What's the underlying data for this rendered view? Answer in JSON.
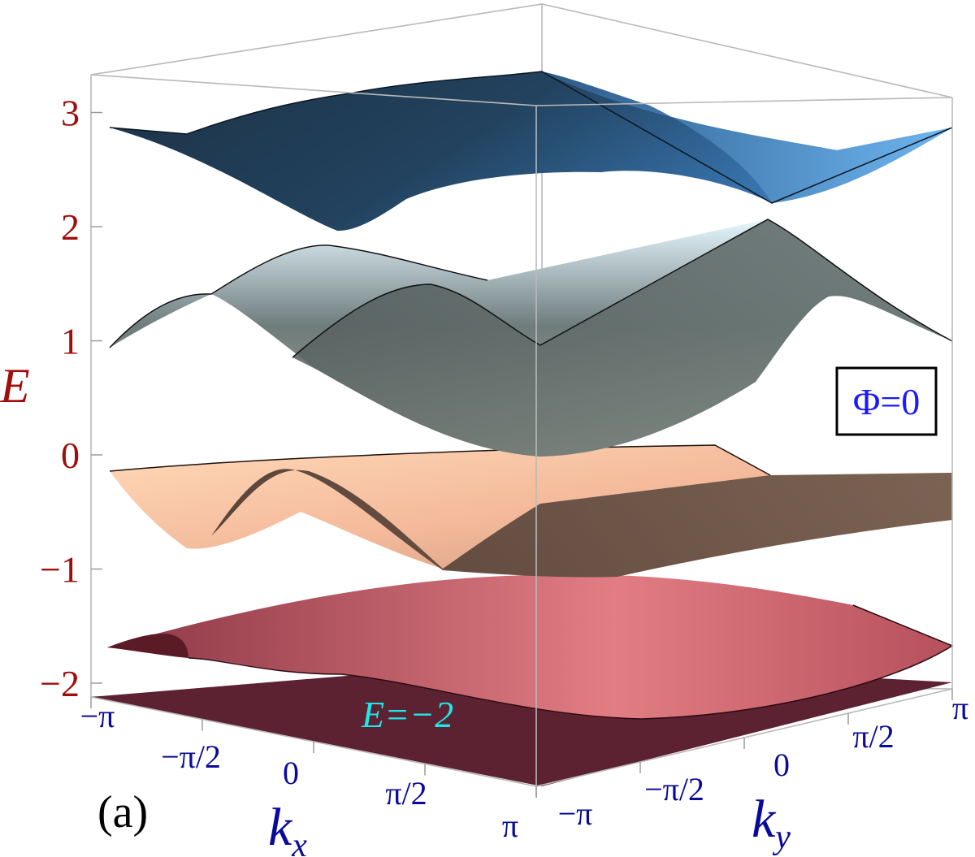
{
  "panel_label": "(a)",
  "annotation": {
    "plane_label": "E=−2",
    "flux_label": "Φ=0"
  },
  "chart_data": {
    "type": "surface3d",
    "title": "",
    "zlabel": "E",
    "xlabel": {
      "base": "k",
      "sub": "x"
    },
    "ylabel": {
      "base": "k",
      "sub": "y"
    },
    "x_ticks": [
      "−π",
      "−π/2",
      "0",
      "π/2",
      "π"
    ],
    "y_ticks": [
      "−π",
      "−π/2",
      "0",
      "π/2",
      "π"
    ],
    "z_ticks": [
      {
        "value": 3,
        "label": "3"
      },
      {
        "value": 2,
        "label": "2"
      },
      {
        "value": 1,
        "label": "1"
      },
      {
        "value": 0,
        "label": "0"
      },
      {
        "value": -1,
        "label": "−1"
      },
      {
        "value": -2,
        "label": "−2"
      }
    ],
    "xlim": [
      -3.1416,
      3.1416
    ],
    "ylim": [
      -3.1416,
      3.1416
    ],
    "zlim": [
      -2.1,
      3.3
    ],
    "bands": [
      {
        "id": "band-1",
        "E_max": 3.3,
        "E_min": 2.0,
        "color_light": "#5aa7ee",
        "color_dark": "#1b3550"
      },
      {
        "id": "band-2",
        "E_max": 2.0,
        "E_min": 0.0,
        "color_light": "#dff4ff",
        "color_dark": "#545c5c"
      },
      {
        "id": "band-3",
        "E_max": 0.0,
        "E_min": -1.0,
        "color_light": "#fcc9a3",
        "color_dark": "#4e3a31"
      },
      {
        "id": "band-4",
        "E_max": -1.0,
        "E_min": -1.9,
        "color_light": "#dd6f78",
        "color_dark": "#5a1a26"
      }
    ],
    "flat_band": {
      "E": -2,
      "color": "#5d2231"
    },
    "box": true,
    "grid": false
  }
}
